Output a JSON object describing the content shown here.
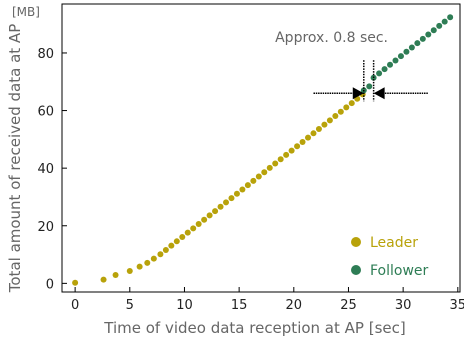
{
  "chart_data": {
    "type": "scatter",
    "xlabel": "Time of video data reception at AP [sec]",
    "ylabel": "Total amount of received data at AP",
    "yunit": "[MB]",
    "xlim": [
      -1.2,
      35.2
    ],
    "ylim": [
      -3,
      97
    ],
    "xticks": [
      0,
      5,
      10,
      15,
      20,
      25,
      30,
      35
    ],
    "yticks": [
      0,
      20,
      40,
      60,
      80
    ],
    "grid": false,
    "legend_position": "bottom-right",
    "annotation": {
      "text": "Approx. 0.8 sec.",
      "gap_x": [
        26.4,
        27.3
      ],
      "gap_y": 66,
      "arrow_left_start": 21.8,
      "arrow_right_end": 32.3
    },
    "series": [
      {
        "name": "Leader",
        "color": "#b8a20a",
        "points": [
          [
            0,
            0.2
          ],
          [
            2.6,
            1.3
          ],
          [
            3.7,
            2.9
          ],
          [
            5.0,
            4.3
          ],
          [
            5.9,
            5.8
          ],
          [
            6.6,
            7.1
          ],
          [
            7.2,
            8.6
          ],
          [
            7.8,
            10.1
          ],
          [
            8.3,
            11.6
          ],
          [
            8.8,
            13.1
          ],
          [
            9.3,
            14.6
          ],
          [
            9.8,
            16.1
          ],
          [
            10.3,
            17.6
          ],
          [
            10.8,
            19.1
          ],
          [
            11.3,
            20.6
          ],
          [
            11.8,
            22.1
          ],
          [
            12.3,
            23.6
          ],
          [
            12.8,
            25.1
          ],
          [
            13.3,
            26.6
          ],
          [
            13.8,
            28.1
          ],
          [
            14.3,
            29.6
          ],
          [
            14.8,
            31.1
          ],
          [
            15.3,
            32.6
          ],
          [
            15.8,
            34.1
          ],
          [
            16.3,
            35.6
          ],
          [
            16.8,
            37.1
          ],
          [
            17.3,
            38.6
          ],
          [
            17.8,
            40.1
          ],
          [
            18.3,
            41.6
          ],
          [
            18.8,
            43.1
          ],
          [
            19.3,
            44.6
          ],
          [
            19.8,
            46.1
          ],
          [
            20.3,
            47.6
          ],
          [
            20.8,
            49.1
          ],
          [
            21.3,
            50.6
          ],
          [
            21.8,
            52.1
          ],
          [
            22.3,
            53.6
          ],
          [
            22.8,
            55.1
          ],
          [
            23.3,
            56.6
          ],
          [
            23.8,
            58.1
          ],
          [
            24.3,
            59.6
          ],
          [
            24.8,
            61.1
          ],
          [
            25.3,
            62.6
          ],
          [
            25.8,
            64.1
          ],
          [
            26.3,
            65.6
          ]
        ]
      },
      {
        "name": "Follower",
        "color": "#2e7d55",
        "points": [
          [
            26.4,
            67.0
          ],
          [
            26.9,
            68.4
          ],
          [
            27.3,
            71.4
          ],
          [
            27.8,
            72.9
          ],
          [
            28.3,
            74.4
          ],
          [
            28.8,
            75.9
          ],
          [
            29.3,
            77.4
          ],
          [
            29.8,
            78.9
          ],
          [
            30.3,
            80.4
          ],
          [
            30.8,
            81.9
          ],
          [
            31.3,
            83.4
          ],
          [
            31.8,
            84.9
          ],
          [
            32.3,
            86.4
          ],
          [
            32.8,
            87.9
          ],
          [
            33.3,
            89.4
          ],
          [
            33.8,
            90.9
          ],
          [
            34.3,
            92.4
          ]
        ]
      }
    ]
  }
}
